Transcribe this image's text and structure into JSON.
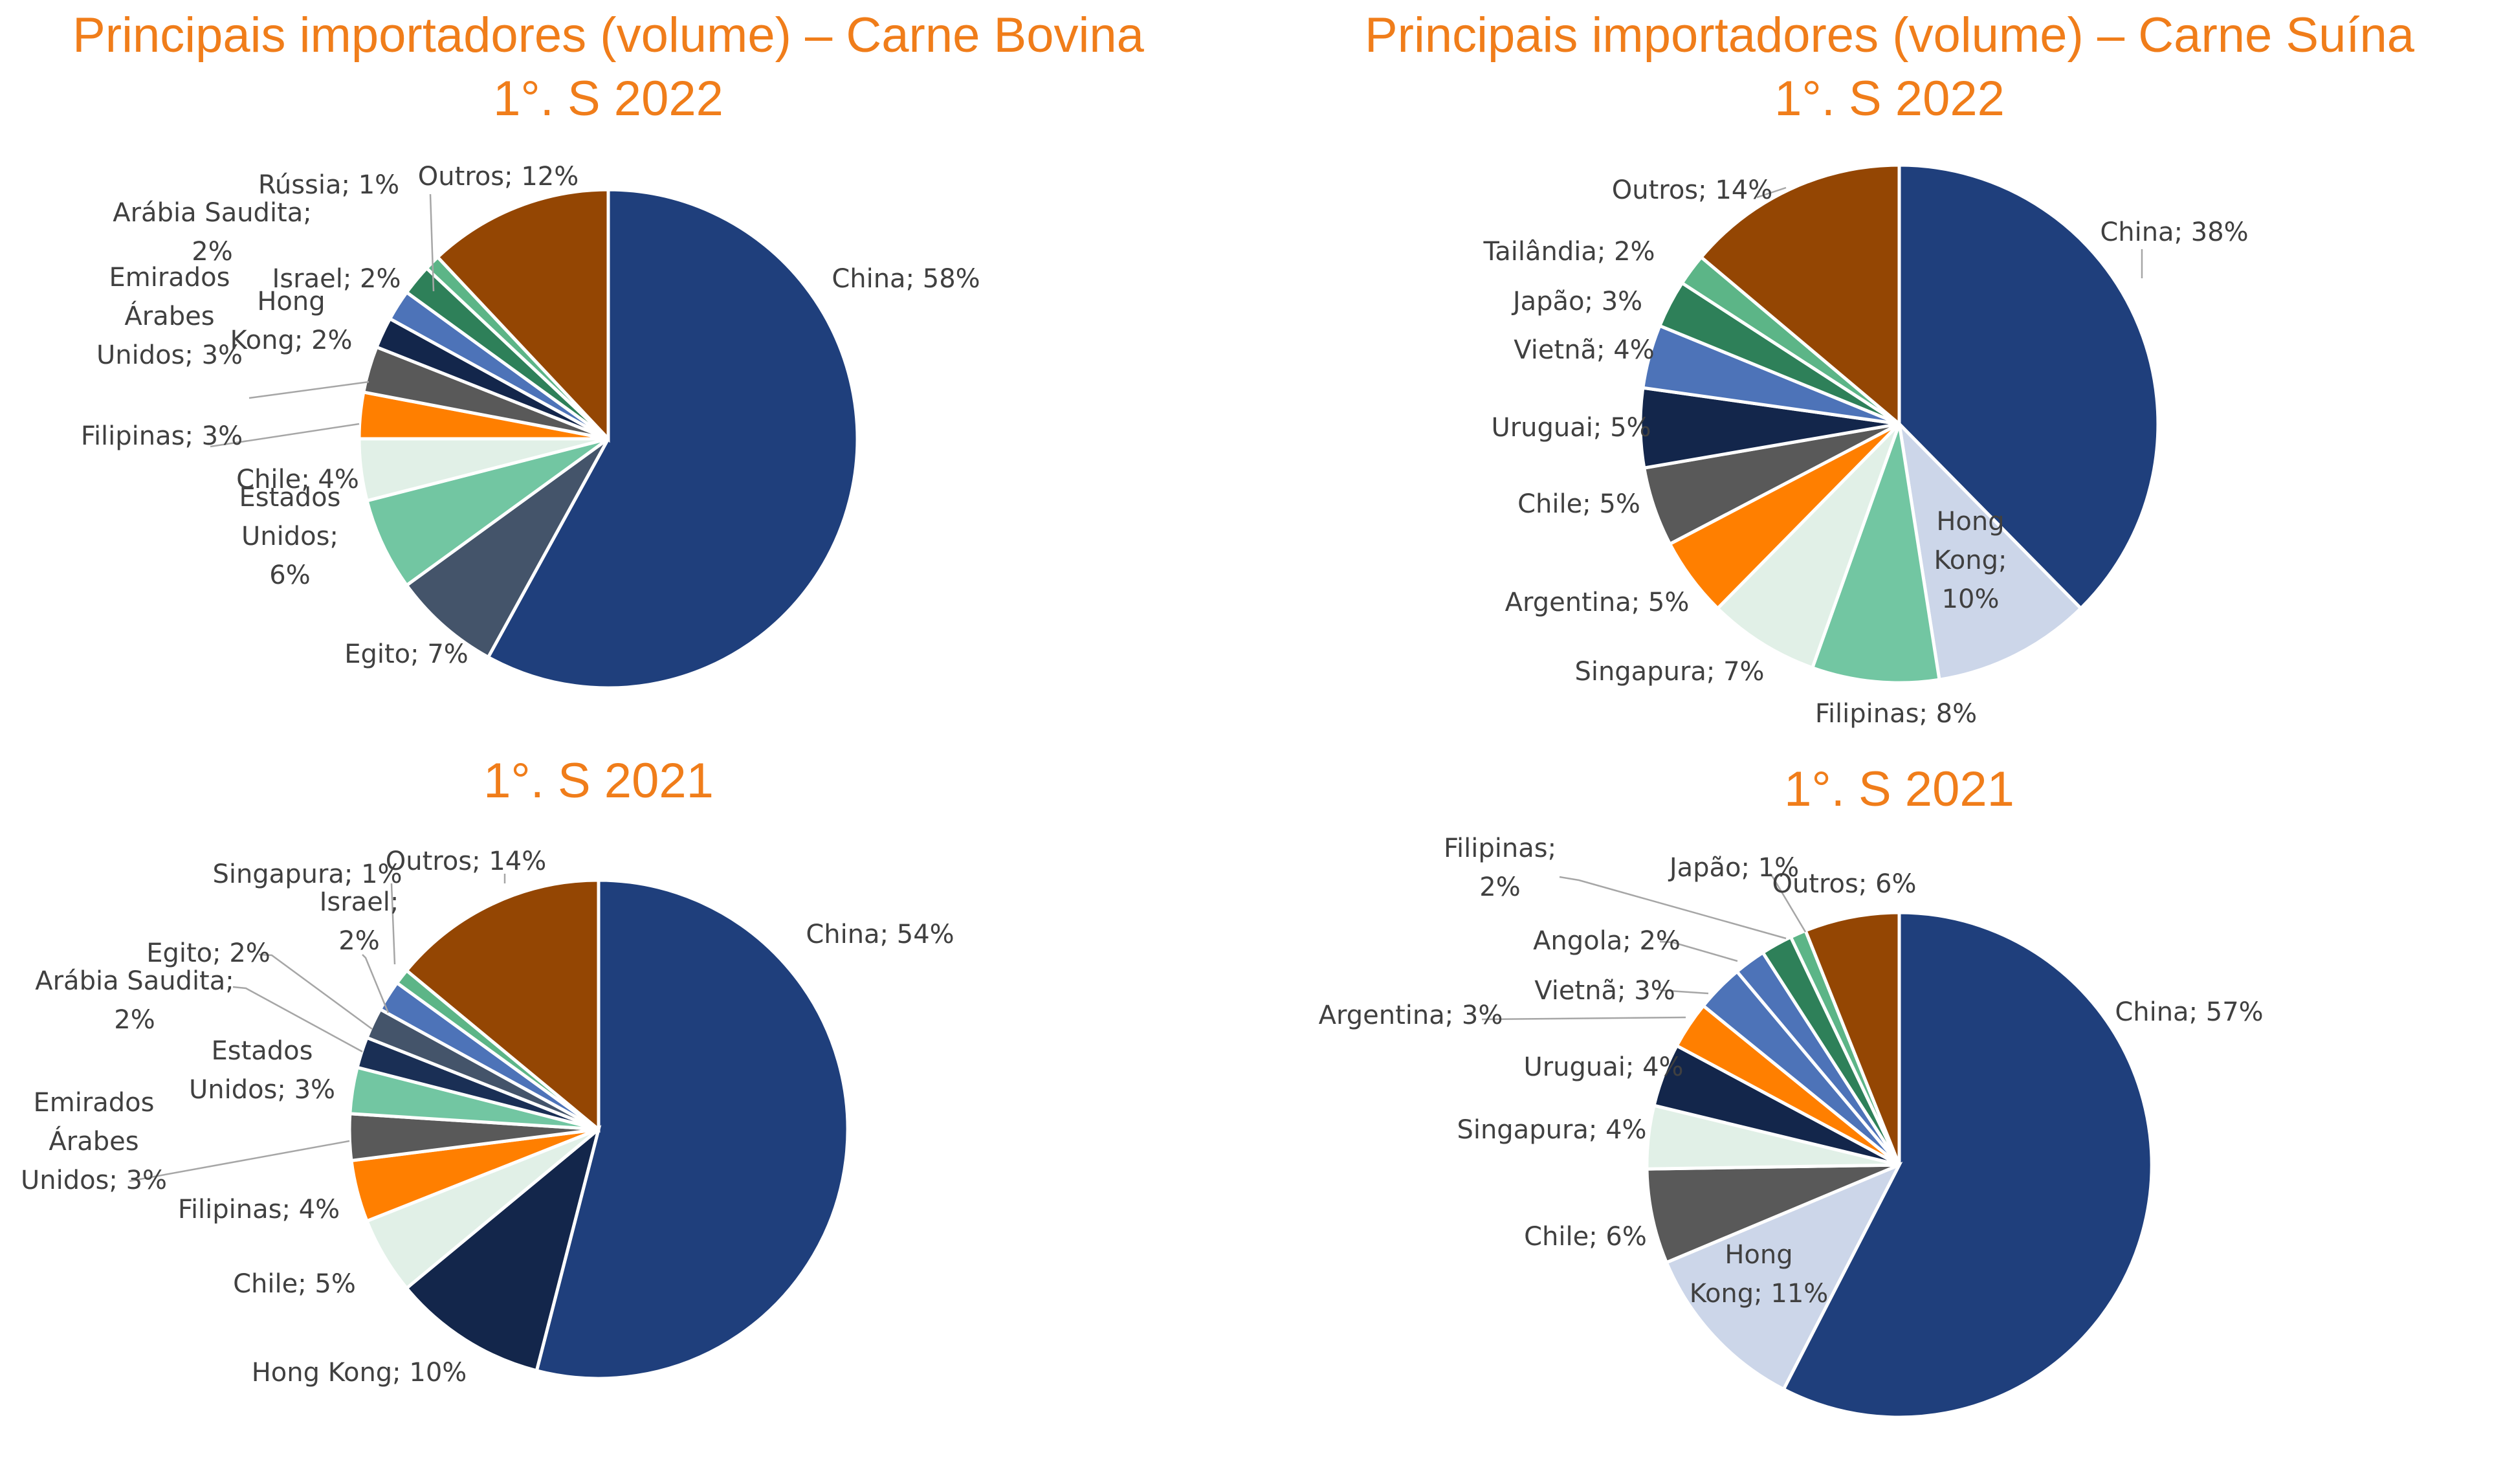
{
  "chart_data": [
    {
      "type": "pie",
      "title": [
        "Principais importadores (volume) – Carne Bovina",
        "1°. S 2022"
      ],
      "slices": [
        {
          "label": [
            "China; 58%"
          ],
          "value": 58,
          "color": "#1f3f7c"
        },
        {
          "label": [
            "Egito; 7%"
          ],
          "value": 7,
          "color": "#44546a"
        },
        {
          "label": [
            "Estados",
            "Unidos;",
            "6%"
          ],
          "value": 6,
          "color": "#72c6a2"
        },
        {
          "label": [
            "Chile; 4%"
          ],
          "value": 4,
          "color": "#e1f0e7"
        },
        {
          "label": [
            "Filipinas; 3%"
          ],
          "value": 3,
          "color": "#ff7f00"
        },
        {
          "label": [
            "Emirados",
            "Árabes",
            "Unidos; 3%"
          ],
          "value": 3,
          "color": "#595959"
        },
        {
          "label": [
            "Hong",
            "Kong; 2%"
          ],
          "value": 2,
          "color": "#13264b"
        },
        {
          "label": [
            "Israel; 2%"
          ],
          "value": 2,
          "color": "#4d73b8"
        },
        {
          "label": [
            "Arábia Saudita;",
            "2%"
          ],
          "value": 2,
          "color": "#2e8059"
        },
        {
          "label": [
            "Rússia; 1%"
          ],
          "value": 1,
          "color": "#5cb587"
        },
        {
          "label": [
            "Outros; 12%"
          ],
          "value": 12,
          "color": "#944603"
        }
      ]
    },
    {
      "type": "pie",
      "title": [
        "Principais importadores (volume) – Carne Suína",
        "1°. S 2022"
      ],
      "slices": [
        {
          "label": [
            "China; 38%"
          ],
          "value": 38,
          "color": "#1f3f7c"
        },
        {
          "label": [
            "Hong",
            "Kong;",
            "10%"
          ],
          "value": 10,
          "color": "#ccd6e9"
        },
        {
          "label": [
            "Filipinas; 8%"
          ],
          "value": 8,
          "color": "#72c6a2"
        },
        {
          "label": [
            "Singapura; 7%"
          ],
          "value": 7,
          "color": "#e1f0e7"
        },
        {
          "label": [
            "Argentina; 5%"
          ],
          "value": 5,
          "color": "#ff7f00"
        },
        {
          "label": [
            "Chile; 5%"
          ],
          "value": 5,
          "color": "#595959"
        },
        {
          "label": [
            "Uruguai; 5%"
          ],
          "value": 5,
          "color": "#13264b"
        },
        {
          "label": [
            "Vietnã; 4%"
          ],
          "value": 4,
          "color": "#4d73b8"
        },
        {
          "label": [
            "Japão; 3%"
          ],
          "value": 3,
          "color": "#2e8059"
        },
        {
          "label": [
            "Tailândia; 2%"
          ],
          "value": 2,
          "color": "#5cb587"
        },
        {
          "label": [
            "Outros; 14%"
          ],
          "value": 14,
          "color": "#944603"
        }
      ]
    },
    {
      "type": "pie",
      "title": [
        "1°. S 2021"
      ],
      "slices": [
        {
          "label": [
            "China; 54%"
          ],
          "value": 54,
          "color": "#1f3f7c"
        },
        {
          "label": [
            "Hong Kong; 10%"
          ],
          "value": 10,
          "color": "#13264b"
        },
        {
          "label": [
            "Chile; 5%"
          ],
          "value": 5,
          "color": "#e1f0e7"
        },
        {
          "label": [
            "Filipinas; 4%"
          ],
          "value": 4,
          "color": "#ff7f00"
        },
        {
          "label": [
            "Emirados",
            "Árabes",
            "Unidos; 3%"
          ],
          "value": 3,
          "color": "#595959"
        },
        {
          "label": [
            "Estados",
            "Unidos; 3%"
          ],
          "value": 3,
          "color": "#72c6a2"
        },
        {
          "label": [
            "Arábia Saudita;",
            "2%"
          ],
          "value": 2,
          "color": "#1a2f55"
        },
        {
          "label": [
            "Egito; 2%"
          ],
          "value": 2,
          "color": "#44546a"
        },
        {
          "label": [
            "Israel;",
            "2%"
          ],
          "value": 2,
          "color": "#4d73b8"
        },
        {
          "label": [
            "Singapura; 1%"
          ],
          "value": 1,
          "color": "#5cb587"
        },
        {
          "label": [
            "Outros; 14%"
          ],
          "value": 14,
          "color": "#944603"
        }
      ]
    },
    {
      "type": "pie",
      "title": [
        "1°. S 2021"
      ],
      "slices": [
        {
          "label": [
            "China; 57%"
          ],
          "value": 57,
          "color": "#1f3f7c"
        },
        {
          "label": [
            "Hong",
            "Kong; 11%"
          ],
          "value": 11,
          "color": "#ccd6e9"
        },
        {
          "label": [
            "Chile; 6%"
          ],
          "value": 6,
          "color": "#595959"
        },
        {
          "label": [
            "Singapura; 4%"
          ],
          "value": 4,
          "color": "#e1f0e7"
        },
        {
          "label": [
            "Uruguai; 4%"
          ],
          "value": 4,
          "color": "#13264b"
        },
        {
          "label": [
            "Argentina; 3%"
          ],
          "value": 3,
          "color": "#ff7f00"
        },
        {
          "label": [
            "Vietnã; 3%"
          ],
          "value": 3,
          "color": "#4d73b8"
        },
        {
          "label": [
            "Angola; 2%"
          ],
          "value": 2,
          "color": "#4d73b8"
        },
        {
          "label": [
            "Filipinas;",
            "2%"
          ],
          "value": 2,
          "color": "#2e8059"
        },
        {
          "label": [
            "Japão; 1%"
          ],
          "value": 1,
          "color": "#5cb587"
        },
        {
          "label": [
            "Outros; 6%"
          ],
          "value": 6,
          "color": "#944603"
        }
      ]
    }
  ]
}
